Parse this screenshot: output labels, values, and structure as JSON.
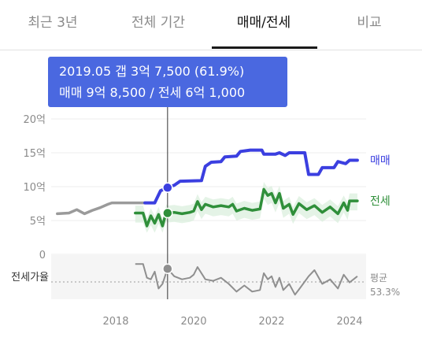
{
  "tabs": [
    {
      "label": "최근 3년",
      "active": false
    },
    {
      "label": "전체 기간",
      "active": false
    },
    {
      "label": "매매/전세",
      "active": true
    },
    {
      "label": "비교",
      "active": false
    }
  ],
  "tooltip": {
    "line1": "2019.05  갭 3억 7,500 (61.9%)",
    "line2": "매매 9억 8,500 / 전세 6억 1,000"
  },
  "colors": {
    "sale": "#3b3fe0",
    "jeonse": "#2f8f3a",
    "pre_history": "#9a9a9a",
    "ratio": "#8f8f8f",
    "tooltip_bg": "#4a68e0"
  },
  "chart_data": {
    "type": "line",
    "x_ticks": [
      "2018",
      "2020",
      "2022",
      "2024"
    ],
    "y_ticks": [
      "20억",
      "15억",
      "10억",
      "5억",
      "0"
    ],
    "ylim": [
      0,
      20
    ],
    "y_unit": "억",
    "series": [
      {
        "name": "매매",
        "color": "#3b3fe0",
        "points": [
          [
            2018.75,
            7.6
          ],
          [
            2019.0,
            7.6
          ],
          [
            2019.15,
            9.4
          ],
          [
            2019.33,
            9.85
          ],
          [
            2019.5,
            10.2
          ],
          [
            2019.65,
            10.8
          ],
          [
            2020.2,
            10.9
          ],
          [
            2020.3,
            13.0
          ],
          [
            2020.45,
            13.6
          ],
          [
            2020.7,
            13.7
          ],
          [
            2020.8,
            14.4
          ],
          [
            2021.1,
            14.5
          ],
          [
            2021.2,
            15.2
          ],
          [
            2021.45,
            15.4
          ],
          [
            2021.75,
            15.4
          ],
          [
            2021.8,
            14.8
          ],
          [
            2022.1,
            14.8
          ],
          [
            2022.2,
            15.0
          ],
          [
            2022.35,
            14.6
          ],
          [
            2022.45,
            15.0
          ],
          [
            2022.85,
            15.0
          ],
          [
            2022.95,
            11.8
          ],
          [
            2023.2,
            11.8
          ],
          [
            2023.3,
            12.8
          ],
          [
            2023.6,
            12.8
          ],
          [
            2023.7,
            13.7
          ],
          [
            2023.9,
            13.4
          ],
          [
            2024.0,
            13.9
          ],
          [
            2024.2,
            13.9
          ]
        ]
      },
      {
        "name": "전세",
        "color": "#2f8f3a",
        "points": [
          [
            2018.5,
            6.1
          ],
          [
            2018.7,
            6.1
          ],
          [
            2018.8,
            4.2
          ],
          [
            2018.9,
            5.7
          ],
          [
            2019.0,
            4.6
          ],
          [
            2019.1,
            5.9
          ],
          [
            2019.2,
            4.2
          ],
          [
            2019.3,
            6.3
          ],
          [
            2019.33,
            6.1
          ],
          [
            2019.5,
            6.2
          ],
          [
            2019.7,
            6.0
          ],
          [
            2019.9,
            6.2
          ],
          [
            2020.0,
            6.4
          ],
          [
            2020.1,
            7.8
          ],
          [
            2020.2,
            6.6
          ],
          [
            2020.3,
            7.4
          ],
          [
            2020.5,
            7.0
          ],
          [
            2020.7,
            7.2
          ],
          [
            2020.9,
            7.0
          ],
          [
            2021.0,
            7.4
          ],
          [
            2021.1,
            6.4
          ],
          [
            2021.3,
            6.8
          ],
          [
            2021.5,
            6.5
          ],
          [
            2021.7,
            6.7
          ],
          [
            2021.8,
            9.6
          ],
          [
            2021.9,
            8.7
          ],
          [
            2022.0,
            9.0
          ],
          [
            2022.1,
            7.6
          ],
          [
            2022.2,
            9.0
          ],
          [
            2022.3,
            6.8
          ],
          [
            2022.45,
            7.4
          ],
          [
            2022.55,
            5.9
          ],
          [
            2022.7,
            7.5
          ],
          [
            2022.9,
            6.6
          ],
          [
            2023.1,
            7.2
          ],
          [
            2023.3,
            6.2
          ],
          [
            2023.5,
            7.0
          ],
          [
            2023.7,
            6.0
          ],
          [
            2023.85,
            7.6
          ],
          [
            2023.95,
            6.5
          ],
          [
            2024.0,
            7.9
          ],
          [
            2024.2,
            7.9
          ]
        ]
      },
      {
        "name": "",
        "color": "#9a9a9a",
        "points": [
          [
            2016.5,
            6.0
          ],
          [
            2016.8,
            6.1
          ],
          [
            2017.0,
            6.6
          ],
          [
            2017.2,
            6.0
          ],
          [
            2017.4,
            6.5
          ],
          [
            2017.6,
            6.9
          ],
          [
            2017.8,
            7.4
          ],
          [
            2017.9,
            7.6
          ],
          [
            2018.75,
            7.6
          ]
        ]
      }
    ],
    "ratio_series": {
      "label": "전세가율",
      "average_label": "평균",
      "average_value": "53.3%",
      "average": 53.3,
      "ylim": [
        40,
        70
      ],
      "points": [
        [
          2018.5,
          65
        ],
        [
          2018.7,
          65
        ],
        [
          2018.8,
          56
        ],
        [
          2018.9,
          55
        ],
        [
          2019.0,
          60
        ],
        [
          2019.1,
          49
        ],
        [
          2019.2,
          52
        ],
        [
          2019.33,
          61.9
        ],
        [
          2019.5,
          57
        ],
        [
          2019.7,
          55
        ],
        [
          2019.9,
          56
        ],
        [
          2020.0,
          58
        ],
        [
          2020.1,
          63
        ],
        [
          2020.3,
          55
        ],
        [
          2020.5,
          54
        ],
        [
          2020.7,
          56
        ],
        [
          2020.9,
          52
        ],
        [
          2021.1,
          47
        ],
        [
          2021.3,
          51
        ],
        [
          2021.5,
          47
        ],
        [
          2021.7,
          48
        ],
        [
          2021.8,
          59
        ],
        [
          2021.9,
          55
        ],
        [
          2022.0,
          57
        ],
        [
          2022.1,
          50
        ],
        [
          2022.2,
          56
        ],
        [
          2022.3,
          48
        ],
        [
          2022.45,
          52
        ],
        [
          2022.6,
          45
        ],
        [
          2022.75,
          50
        ],
        [
          2022.95,
          57
        ],
        [
          2023.1,
          61
        ],
        [
          2023.3,
          52
        ],
        [
          2023.5,
          55
        ],
        [
          2023.7,
          49
        ],
        [
          2023.85,
          58
        ],
        [
          2024.0,
          53
        ],
        [
          2024.2,
          57
        ]
      ]
    },
    "highlight": {
      "date": "2019.05",
      "x": 2019.33,
      "sale": 9.85,
      "jeonse": 6.1,
      "ratio": 61.9
    }
  }
}
